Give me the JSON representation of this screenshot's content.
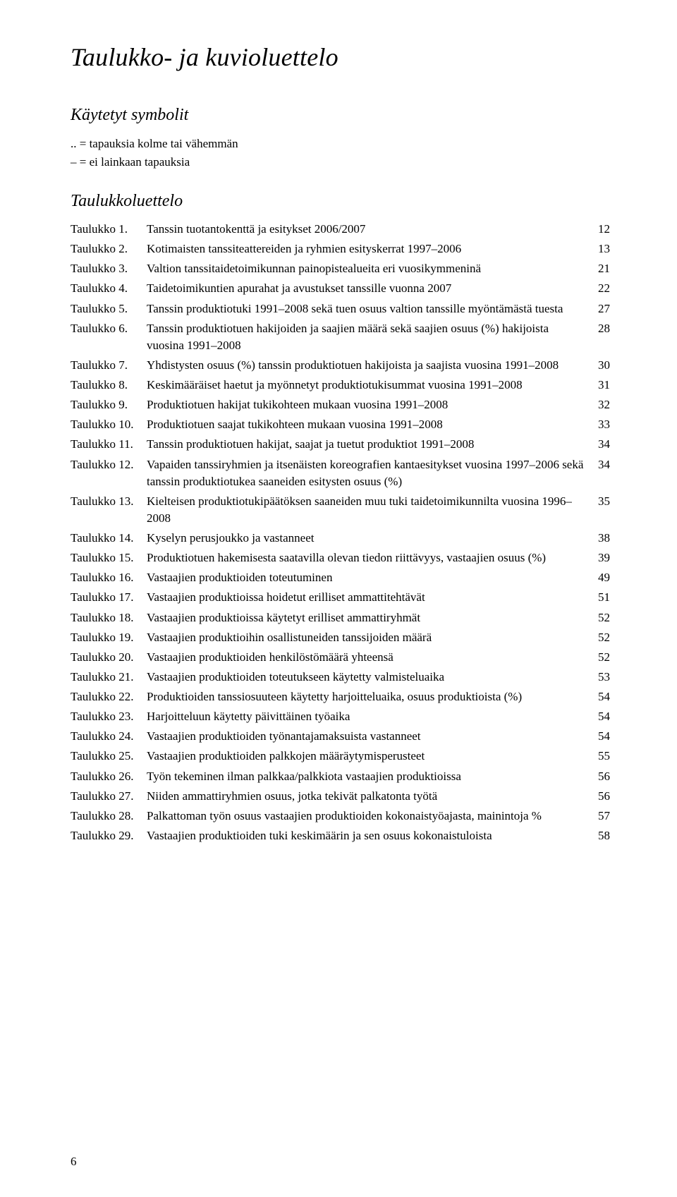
{
  "title": "Taulukko- ja kuvioluettelo",
  "symbols_heading": "Käytetyt symbolit",
  "symbol_lines": [
    "..  = tapauksia kolme tai vähemmän",
    "–  = ei lainkaan tapauksia"
  ],
  "toc_heading": "Taulukkoluettelo",
  "entries": [
    {
      "label": "Taulukko 1.",
      "desc": "Tanssin tuotantokenttä ja esitykset 2006/2007",
      "page": "12"
    },
    {
      "label": "Taulukko 2.",
      "desc": "Kotimaisten tanssiteattereiden ja ryhmien esityskerrat 1997–2006",
      "page": "13"
    },
    {
      "label": "Taulukko 3.",
      "desc": "Valtion tanssitaidetoimikunnan painopistealueita eri vuosikymmeninä",
      "page": "21"
    },
    {
      "label": "Taulukko 4.",
      "desc": "Taidetoimikuntien apurahat ja avustukset tanssille vuonna 2007",
      "page": "22"
    },
    {
      "label": "Taulukko 5.",
      "desc": "Tanssin produktiotuki 1991–2008 sekä tuen osuus valtion tanssille myöntämästä tuesta",
      "page": "27"
    },
    {
      "label": "Taulukko 6.",
      "desc": "Tanssin produktiotuen hakijoiden ja saajien määrä sekä saajien osuus (%) hakijoista vuosina 1991–2008",
      "page": "28"
    },
    {
      "label": "Taulukko 7.",
      "desc": "Yhdistysten osuus (%) tanssin produktiotuen hakijoista ja saajista vuosina 1991–2008",
      "page": "30"
    },
    {
      "label": "Taulukko 8.",
      "desc": "Keskimääräiset haetut ja myönnetyt produktiotukisummat vuosina 1991–2008",
      "page": "31"
    },
    {
      "label": "Taulukko 9.",
      "desc": "Produktiotuen hakijat tukikohteen mukaan vuosina 1991–2008",
      "page": "32"
    },
    {
      "label": "Taulukko 10.",
      "desc": "Produktiotuen saajat tukikohteen mukaan vuosina 1991–2008",
      "page": "33"
    },
    {
      "label": "Taulukko 11.",
      "desc": "Tanssin produktiotuen hakijat, saajat ja tuetut produktiot 1991–2008",
      "page": "34"
    },
    {
      "label": "Taulukko 12.",
      "desc": "Vapaiden tanssiryhmien ja itsenäisten koreografien kantaesitykset vuosina 1997–2006 sekä tanssin produktiotukea saaneiden esitysten osuus (%)",
      "page": "34"
    },
    {
      "label": "Taulukko 13.",
      "desc": "Kielteisen produktiotukipäätöksen saaneiden muu tuki taidetoimikunnilta vuosina 1996–2008",
      "page": "35"
    },
    {
      "label": "Taulukko 14.",
      "desc": "Kyselyn perusjoukko ja vastanneet",
      "page": "38"
    },
    {
      "label": "Taulukko 15.",
      "desc": "Produktiotuen hakemisesta saatavilla olevan tiedon riittävyys, vastaajien osuus (%)",
      "page": "39"
    },
    {
      "label": "Taulukko 16.",
      "desc": "Vastaajien produktioiden toteutuminen",
      "page": "49"
    },
    {
      "label": "Taulukko 17.",
      "desc": "Vastaajien produktioissa hoidetut erilliset ammattitehtävät",
      "page": "51"
    },
    {
      "label": "Taulukko 18.",
      "desc": "Vastaajien produktioissa käytetyt erilliset ammattiryhmät",
      "page": "52"
    },
    {
      "label": "Taulukko 19.",
      "desc": "Vastaajien produktioihin osallistuneiden tanssijoiden määrä",
      "page": "52"
    },
    {
      "label": "Taulukko 20.",
      "desc": "Vastaajien produktioiden henkilöstömäärä yhteensä",
      "page": "52"
    },
    {
      "label": "Taulukko 21.",
      "desc": "Vastaajien produktioiden toteutukseen käytetty valmisteluaika",
      "page": "53"
    },
    {
      "label": "Taulukko 22.",
      "desc": "Produktioiden tanssiosuuteen käytetty harjoitteluaika, osuus produktioista (%)",
      "page": "54"
    },
    {
      "label": "Taulukko 23.",
      "desc": "Harjoitteluun käytetty päivittäinen työaika",
      "page": "54"
    },
    {
      "label": "Taulukko 24.",
      "desc": "Vastaajien produktioiden työnantajamaksuista vastanneet",
      "page": "54"
    },
    {
      "label": "Taulukko 25.",
      "desc": "Vastaajien produktioiden palkkojen määräytymisperusteet",
      "page": "55"
    },
    {
      "label": "Taulukko 26.",
      "desc": "Työn tekeminen ilman palkkaa/palkkiota vastaajien produktioissa",
      "page": "56"
    },
    {
      "label": "Taulukko 27.",
      "desc": "Niiden ammattiryhmien osuus, jotka tekivät palkatonta työtä",
      "page": "56"
    },
    {
      "label": "Taulukko 28.",
      "desc": "Palkattoman työn osuus vastaajien produktioiden kokonaistyöajasta, mainintoja %",
      "page": "57"
    },
    {
      "label": "Taulukko 29.",
      "desc": "Vastaajien produktioiden tuki keskimäärin ja sen osuus kokonaistuloista",
      "page": "58"
    }
  ],
  "page_number": "6"
}
